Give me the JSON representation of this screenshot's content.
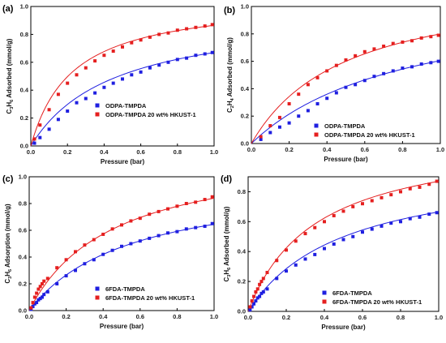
{
  "chart_data": [
    {
      "panel": "(a)",
      "type": "scatter",
      "xlabel": "Pressure (bar)",
      "ylabel_parts": [
        "C",
        "3",
        "H",
        "6",
        " Adsorbed (mmol/g)"
      ],
      "xlim": [
        0,
        1.0
      ],
      "ylim": [
        0,
        1.0
      ],
      "xticks": [
        "0.0",
        "0.2",
        "0.4",
        "0.6",
        "0.8",
        "1.0"
      ],
      "yticks": [
        "0.0",
        "0.2",
        "0.4",
        "0.6",
        "0.8",
        "1.0"
      ],
      "series": [
        {
          "name": "ODPA-TMPDA",
          "color": "#1f1fe0",
          "x": [
            0.02,
            0.05,
            0.1,
            0.15,
            0.2,
            0.25,
            0.3,
            0.35,
            0.4,
            0.45,
            0.5,
            0.55,
            0.6,
            0.65,
            0.7,
            0.75,
            0.8,
            0.85,
            0.9,
            0.95,
            0.99
          ],
          "y": [
            0.02,
            0.06,
            0.12,
            0.19,
            0.25,
            0.31,
            0.34,
            0.38,
            0.42,
            0.45,
            0.48,
            0.51,
            0.53,
            0.56,
            0.58,
            0.6,
            0.62,
            0.63,
            0.65,
            0.66,
            0.67
          ]
        },
        {
          "name": "ODPA-TMPDA 20 wt% HKUST-1",
          "color": "#e51f1f",
          "x": [
            0.02,
            0.05,
            0.1,
            0.15,
            0.2,
            0.25,
            0.3,
            0.35,
            0.4,
            0.45,
            0.5,
            0.55,
            0.6,
            0.65,
            0.7,
            0.75,
            0.8,
            0.85,
            0.9,
            0.95,
            0.99
          ],
          "y": [
            0.05,
            0.15,
            0.26,
            0.37,
            0.45,
            0.51,
            0.56,
            0.61,
            0.65,
            0.68,
            0.71,
            0.74,
            0.76,
            0.78,
            0.8,
            0.81,
            0.83,
            0.84,
            0.85,
            0.86,
            0.87
          ]
        }
      ],
      "fit_a": [
        0.67,
        2.2,
        0.865,
        4.4
      ]
    },
    {
      "panel": "(b)",
      "type": "scatter",
      "xlabel": "Pressure (bar)",
      "ylabel_parts": [
        "C",
        "2",
        "H",
        "4",
        " Adsorbed (mmol/g)"
      ],
      "xlim": [
        0,
        1.0
      ],
      "ylim": [
        0,
        1.0
      ],
      "xticks": [
        "0.0",
        "0.2",
        "0.4",
        "0.6",
        "0.8",
        "1.0"
      ],
      "yticks": [
        "0.0",
        "0.2",
        "0.4",
        "0.6",
        "0.8",
        "1.0"
      ],
      "series": [
        {
          "name": "ODPA-TMPDA",
          "color": "#1f1fe0",
          "x": [
            0.05,
            0.1,
            0.15,
            0.2,
            0.25,
            0.3,
            0.35,
            0.4,
            0.45,
            0.5,
            0.55,
            0.6,
            0.65,
            0.7,
            0.75,
            0.8,
            0.85,
            0.9,
            0.95,
            0.99
          ],
          "y": [
            0.03,
            0.08,
            0.12,
            0.15,
            0.2,
            0.24,
            0.29,
            0.33,
            0.37,
            0.41,
            0.43,
            0.46,
            0.49,
            0.51,
            0.53,
            0.55,
            0.56,
            0.58,
            0.59,
            0.6
          ]
        },
        {
          "name": "ODPA-TMPDA 20 wt% HKUST-1",
          "color": "#e51f1f",
          "x": [
            0.05,
            0.1,
            0.15,
            0.2,
            0.25,
            0.3,
            0.35,
            0.4,
            0.45,
            0.5,
            0.55,
            0.6,
            0.65,
            0.7,
            0.75,
            0.8,
            0.85,
            0.9,
            0.95,
            0.99
          ],
          "y": [
            0.05,
            0.13,
            0.19,
            0.29,
            0.36,
            0.43,
            0.48,
            0.53,
            0.57,
            0.61,
            0.64,
            0.67,
            0.69,
            0.71,
            0.73,
            0.74,
            0.75,
            0.77,
            0.78,
            0.79
          ]
        }
      ],
      "fit_a": [
        0.605,
        1.2,
        0.8,
        2.0
      ]
    },
    {
      "panel": "(c)",
      "type": "scatter",
      "xlabel": "Pressure (bar)",
      "ylabel_parts": [
        "C",
        "3",
        "H",
        "6",
        " Adsorption (mmol/g)"
      ],
      "xlim": [
        0,
        1.0
      ],
      "ylim": [
        0,
        1.0
      ],
      "xticks": [
        "0.0",
        "0.2",
        "0.4",
        "0.6",
        "0.8",
        "1.0"
      ],
      "yticks": [
        "0.0",
        "0.2",
        "0.4",
        "0.6",
        "0.8",
        "1.0"
      ],
      "series": [
        {
          "name": "6FDA-TMPDA",
          "color": "#1f1fe0",
          "x": [
            0.01,
            0.02,
            0.03,
            0.04,
            0.05,
            0.06,
            0.07,
            0.08,
            0.1,
            0.15,
            0.2,
            0.25,
            0.3,
            0.35,
            0.4,
            0.45,
            0.5,
            0.55,
            0.6,
            0.65,
            0.7,
            0.75,
            0.8,
            0.85,
            0.9,
            0.95,
            0.99
          ],
          "y": [
            0.01,
            0.03,
            0.05,
            0.06,
            0.08,
            0.09,
            0.1,
            0.12,
            0.14,
            0.2,
            0.26,
            0.3,
            0.35,
            0.38,
            0.42,
            0.45,
            0.48,
            0.5,
            0.52,
            0.54,
            0.56,
            0.58,
            0.59,
            0.61,
            0.62,
            0.63,
            0.65
          ]
        },
        {
          "name": "6FDA-TMPDA 20 wt% HKUST-1",
          "color": "#e51f1f",
          "x": [
            0.01,
            0.02,
            0.03,
            0.04,
            0.05,
            0.06,
            0.07,
            0.08,
            0.1,
            0.15,
            0.2,
            0.25,
            0.3,
            0.35,
            0.4,
            0.45,
            0.5,
            0.55,
            0.6,
            0.65,
            0.7,
            0.75,
            0.8,
            0.85,
            0.9,
            0.95,
            0.99
          ],
          "y": [
            0.02,
            0.06,
            0.1,
            0.13,
            0.16,
            0.18,
            0.2,
            0.22,
            0.24,
            0.32,
            0.38,
            0.44,
            0.49,
            0.53,
            0.57,
            0.61,
            0.64,
            0.67,
            0.69,
            0.72,
            0.74,
            0.76,
            0.78,
            0.8,
            0.81,
            0.83,
            0.85
          ]
        }
      ],
      "fit_a": [
        0.645,
        1.8,
        0.84,
        2.2
      ]
    },
    {
      "panel": "(d)",
      "type": "scatter",
      "xlabel": "Pressure (bar)",
      "ylabel_parts": [
        "C",
        "3",
        "H",
        "6",
        " Adsorbed (mmol/g)"
      ],
      "xlim": [
        0,
        1.0
      ],
      "ylim": [
        0,
        0.9
      ],
      "xticks": [
        "0.0",
        "0.2",
        "0.4",
        "0.6",
        "0.8",
        "1.0"
      ],
      "yticks": [
        "0.0",
        "0.2",
        "0.4",
        "0.6",
        "0.8"
      ],
      "series": [
        {
          "name": "6FDA-TMPDA",
          "color": "#1f1fe0",
          "x": [
            0.01,
            0.02,
            0.03,
            0.04,
            0.05,
            0.06,
            0.07,
            0.08,
            0.1,
            0.15,
            0.2,
            0.25,
            0.3,
            0.35,
            0.4,
            0.45,
            0.5,
            0.55,
            0.6,
            0.65,
            0.7,
            0.75,
            0.8,
            0.85,
            0.9,
            0.95,
            0.99
          ],
          "y": [
            0.01,
            0.03,
            0.05,
            0.07,
            0.09,
            0.1,
            0.12,
            0.13,
            0.15,
            0.22,
            0.27,
            0.31,
            0.35,
            0.38,
            0.42,
            0.45,
            0.48,
            0.5,
            0.53,
            0.55,
            0.57,
            0.59,
            0.6,
            0.62,
            0.63,
            0.65,
            0.66
          ]
        },
        {
          "name": "6FDA-TMPDA 20 wt% HKUST-1",
          "color": "#e51f1f",
          "x": [
            0.01,
            0.02,
            0.03,
            0.04,
            0.05,
            0.06,
            0.07,
            0.08,
            0.1,
            0.15,
            0.2,
            0.25,
            0.3,
            0.35,
            0.4,
            0.45,
            0.5,
            0.55,
            0.6,
            0.65,
            0.7,
            0.75,
            0.8,
            0.85,
            0.9,
            0.95,
            0.99
          ],
          "y": [
            0.03,
            0.07,
            0.1,
            0.13,
            0.15,
            0.18,
            0.2,
            0.22,
            0.26,
            0.34,
            0.41,
            0.47,
            0.52,
            0.56,
            0.6,
            0.64,
            0.67,
            0.7,
            0.72,
            0.74,
            0.76,
            0.78,
            0.8,
            0.82,
            0.83,
            0.85,
            0.87
          ]
        }
      ],
      "fit_a": [
        0.665,
        2.0,
        0.87,
        2.8
      ]
    }
  ]
}
